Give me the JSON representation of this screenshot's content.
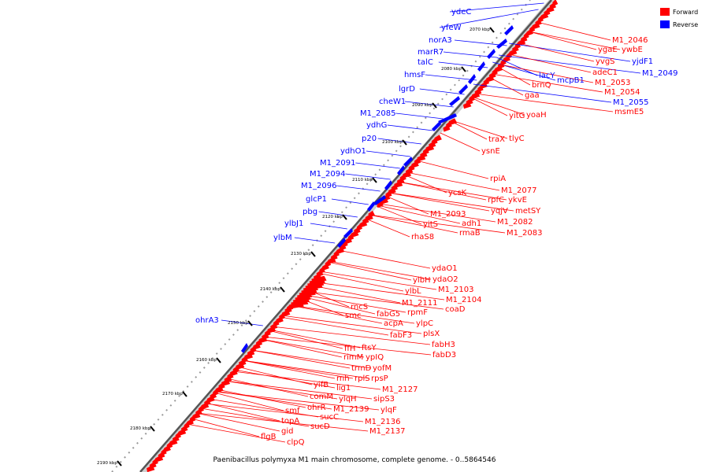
{
  "caption": "Paenibacillus polymyxa M1 main chromosome, complete genome. - 0..5864546",
  "legend": {
    "forward": {
      "label": "Forward",
      "color": "#ff0000"
    },
    "reverse": {
      "label": "Reverse",
      "color": "#0000ff"
    }
  },
  "colors": {
    "forward": "#ff0000",
    "reverse": "#0000ff",
    "backbone": "#555555"
  },
  "ticks": [
    "2070 kbp",
    "2080 kbp",
    "2090 kbp",
    "2100 kbp",
    "2110 kbp",
    "2120 kbp",
    "2130 kbp",
    "2140 kbp",
    "2150 kbp",
    "2160 kbp",
    "2170 kbp",
    "2180 kbp",
    "2190 kbp"
  ],
  "reverse_genes": [
    "ydeC",
    "yfeW",
    "norA3",
    "marR7",
    "talC",
    "hmsF",
    "lgrD",
    "cheW1",
    "M1_2085",
    "ydhG",
    "p20",
    "ydhO1",
    "M1_2091",
    "M1_2094",
    "M1_2096",
    "glcP1",
    "pbg",
    "ylbJ1",
    "ylbM",
    "ohrA3",
    "lacY",
    "mcpB1",
    "yjdF1",
    "M1_2049",
    "M1_2055"
  ],
  "forward_genes": [
    "M1_2046",
    "ywbE",
    "ygaE",
    "yvgS",
    "adeC1",
    "M1_2053",
    "M1_2054",
    "msmE5",
    "brnQ",
    "gaa",
    "yoaH",
    "yitG",
    "traX",
    "tlyC",
    "ysnE",
    "rpiA",
    "M1_2077",
    "ykvE",
    "metSY",
    "rpfC",
    "yqjV",
    "ycsK",
    "M1_2082",
    "M1_2083",
    "M1_2093",
    "adh1",
    "rmaB",
    "yitS",
    "rhaS8",
    "ydaO1",
    "ydaO2",
    "ylbH",
    "M1_2103",
    "M1_2104",
    "ylbL",
    "coaD",
    "M1_2111",
    "rpmF",
    "ylpC",
    "plsX",
    "fabH3",
    "fabD3",
    "rncS",
    "smc",
    "fabG5",
    "acpA",
    "fabF3",
    "ftsY",
    "ffH",
    "ypIQ",
    "rimM",
    "yofM",
    "trmD",
    "rpsP",
    "rnh",
    "rplS",
    "M1_2127",
    "lig1",
    "yifB",
    "sipS3",
    "comM",
    "ylqH",
    "ohrR",
    "M1_2139",
    "ylqF",
    "smf",
    "sucC",
    "topA",
    "sucD",
    "M1_2136",
    "gid",
    "M1_2137",
    "flgB",
    "clpQ"
  ]
}
